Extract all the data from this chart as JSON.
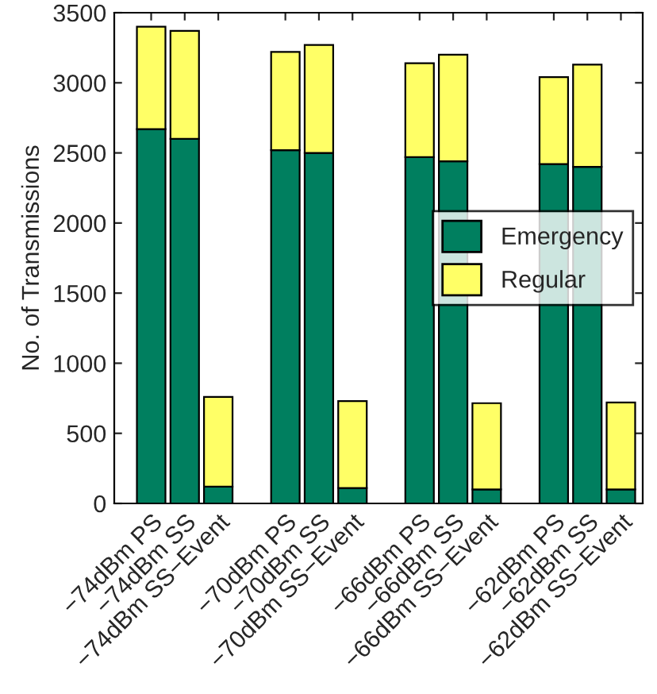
{
  "chart_data": {
    "type": "bar",
    "stacked": true,
    "ylabel": "No. of Transmissions",
    "categories": [
      "−74dBm PS",
      "−74dBm SS",
      "−74dBm SS−Event",
      null,
      "−70dBm PS",
      "−70dBm SS",
      "−70dBm SS−Event",
      null,
      "−66dBm PS",
      "−66dBm SS",
      "−66dBm SS−Event",
      null,
      "−62dBm PS",
      "−62dBm SS",
      "−62dBm SS−Event"
    ],
    "series": [
      {
        "name": "Emergency",
        "color": "#007f5f",
        "values": [
          2670,
          2600,
          120,
          null,
          2520,
          2500,
          110,
          null,
          2470,
          2440,
          100,
          null,
          2420,
          2400,
          100
        ]
      },
      {
        "name": "Regular",
        "color": "#ffff66",
        "values": [
          730,
          770,
          640,
          null,
          700,
          770,
          620,
          null,
          670,
          760,
          615,
          null,
          620,
          730,
          620
        ]
      }
    ],
    "ylim": [
      0,
      3500
    ],
    "yticks": [
      0,
      500,
      1000,
      1500,
      2000,
      2500,
      3000,
      3500
    ],
    "grid": false,
    "legend": "right"
  }
}
